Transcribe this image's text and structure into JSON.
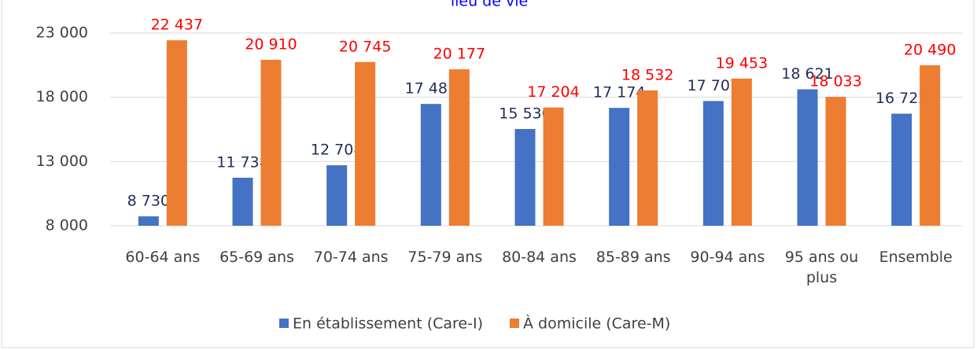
{
  "chart_data": {
    "type": "bar",
    "title": "lieu de vie",
    "categories": [
      "60-64 ans",
      "65-69 ans",
      "70-74 ans",
      "75-79 ans",
      "80-84 ans",
      "85-89 ans",
      "90-94 ans",
      "95 ans ou plus",
      "Ensemble"
    ],
    "series": [
      {
        "name": "En établissement (Care-I)",
        "color": "#4472c4",
        "label_color": "#1f2d5a",
        "values": [
          8730,
          11738,
          12708,
          17481,
          15530,
          17174,
          17707,
          18621,
          16722
        ],
        "value_labels": [
          "8 730",
          "11 738",
          "12 708",
          "17 481",
          "15 530",
          "17 174",
          "17 707",
          "18 621",
          "16 722"
        ]
      },
      {
        "name": "À domicile (Care-M)",
        "color": "#ed7d31",
        "label_color": "#ff0000",
        "values": [
          22437,
          20910,
          20745,
          20177,
          17204,
          18532,
          19453,
          18033,
          20490
        ],
        "value_labels": [
          "22 437",
          "20 910",
          "20 745",
          "20 177",
          "17 204",
          "18 532",
          "19 453",
          "18 033",
          "20 490"
        ]
      }
    ],
    "ylim": [
      8000,
      23000
    ],
    "yticks": [
      {
        "value": 8000,
        "label": "8 000"
      },
      {
        "value": 13000,
        "label": "13 000"
      },
      {
        "value": 18000,
        "label": "18 000"
      },
      {
        "value": 23000,
        "label": "23 000"
      }
    ],
    "grid": true,
    "legend": "bottom"
  }
}
